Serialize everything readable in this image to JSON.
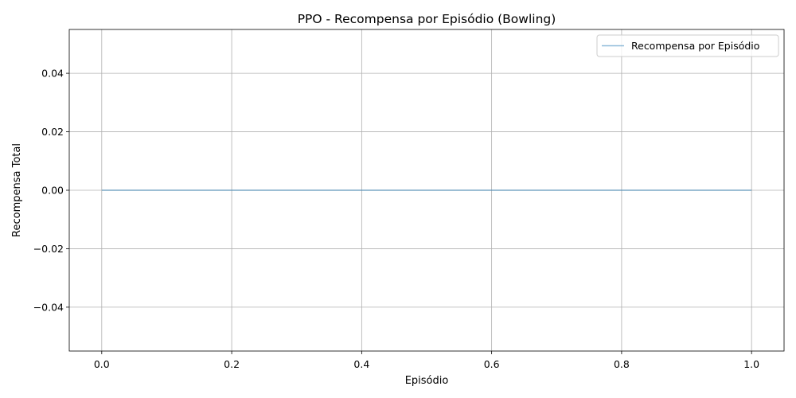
{
  "chart_data": {
    "type": "line",
    "title": "PPO - Recompensa por Episódio (Bowling)",
    "xlabel": "Episódio",
    "ylabel": "Recompensa Total",
    "xlim": [
      -0.05,
      1.05
    ],
    "ylim": [
      -0.055,
      0.055
    ],
    "x_ticks": [
      0.0,
      0.2,
      0.4,
      0.6,
      0.8,
      1.0
    ],
    "x_tick_labels": [
      "0.0",
      "0.2",
      "0.4",
      "0.6",
      "0.8",
      "1.0"
    ],
    "y_ticks": [
      -0.04,
      -0.02,
      0.0,
      0.02,
      0.04
    ],
    "y_tick_labels": [
      "−0.04",
      "−0.02",
      "0.00",
      "0.02",
      "0.04"
    ],
    "grid": true,
    "legend": "top-right",
    "series": [
      {
        "name": "Recompensa por Episódio",
        "color": "#1f77b4",
        "x": [
          0.0,
          1.0
        ],
        "y": [
          0.0,
          0.0
        ]
      }
    ]
  }
}
